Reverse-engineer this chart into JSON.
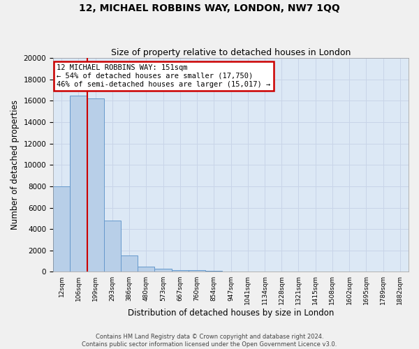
{
  "title": "12, MICHAEL ROBBINS WAY, LONDON, NW7 1QQ",
  "subtitle": "Size of property relative to detached houses in London",
  "xlabel": "Distribution of detached houses by size in London",
  "ylabel": "Number of detached properties",
  "footer_line1": "Contains HM Land Registry data © Crown copyright and database right 2024.",
  "footer_line2": "Contains public sector information licensed under the Open Government Licence v3.0.",
  "bar_labels": [
    "12sqm",
    "106sqm",
    "199sqm",
    "293sqm",
    "386sqm",
    "480sqm",
    "573sqm",
    "667sqm",
    "760sqm",
    "854sqm",
    "947sqm",
    "1041sqm",
    "1134sqm",
    "1228sqm",
    "1321sqm",
    "1415sqm",
    "1508sqm",
    "1602sqm",
    "1695sqm",
    "1789sqm",
    "1882sqm"
  ],
  "bar_values": [
    8000,
    16500,
    16200,
    4800,
    1550,
    480,
    310,
    190,
    130,
    90,
    0,
    0,
    0,
    0,
    0,
    0,
    0,
    0,
    0,
    0,
    0
  ],
  "bar_color": "#b8cfe8",
  "bar_edge_color": "#6699cc",
  "bar_edge_width": 0.7,
  "ylim": [
    0,
    20000
  ],
  "yticks": [
    0,
    2000,
    4000,
    6000,
    8000,
    10000,
    12000,
    14000,
    16000,
    18000,
    20000
  ],
  "annotation_line1": "12 MICHAEL ROBBINS WAY: 151sqm",
  "annotation_line2": "← 54% of detached houses are smaller (17,750)",
  "annotation_line3": "46% of semi-detached houses are larger (15,017) →",
  "annotation_box_color": "#ffffff",
  "annotation_box_edge_color": "#cc0000",
  "red_line_color": "#cc0000",
  "grid_color": "#c8d4e8",
  "bg_color": "#dce8f5",
  "fig_bg_color": "#f0f0f0",
  "title_fontsize": 10,
  "subtitle_fontsize": 9
}
